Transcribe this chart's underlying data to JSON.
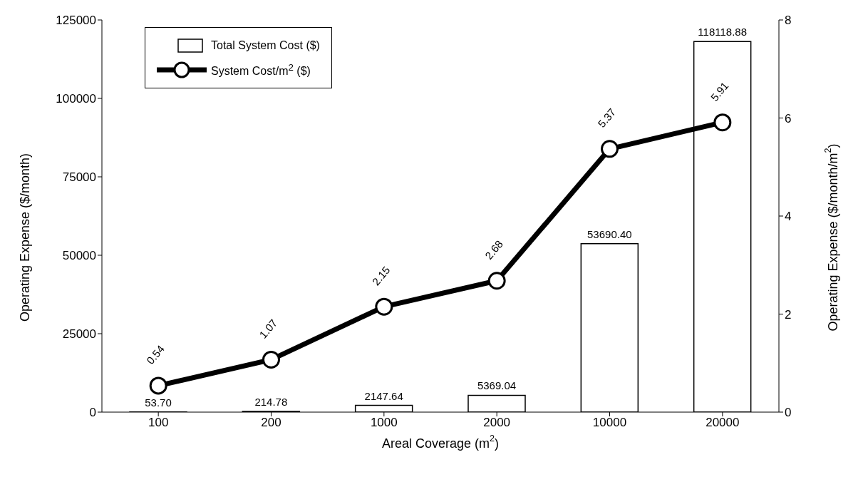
{
  "chart_data": {
    "type": "bar",
    "xlabel": "Areal Coverage (m$^{2}$)",
    "ylabel": "Operating Expense ($/month)",
    "y2label": "Operating Expense ($/month/m$^{2}$)",
    "categories": [
      "100",
      "200",
      "1000",
      "2000",
      "10000",
      "20000"
    ],
    "series": [
      {
        "name": "Total System Cost ($)",
        "color": "#ffffff",
        "values": [
          53.7,
          214.78,
          2147.64,
          5369.04,
          53690.4,
          118118.88
        ],
        "value_labels": [
          "53.70",
          "214.78",
          "2147.64",
          "5369.04",
          "53690.40",
          "118118.88"
        ]
      },
      {
        "name": "System Cost/m$^{2}$ ($)",
        "type": "line",
        "axis": "y2",
        "color": "#000000",
        "values": [
          0.54,
          1.07,
          2.15,
          2.68,
          5.37,
          5.91
        ],
        "value_labels": [
          "0.54",
          "1.07",
          "2.15",
          "2.68",
          "5.37",
          "5.91"
        ]
      }
    ],
    "ylim": [
      0,
      125000
    ],
    "yticks": [
      0,
      25000,
      50000,
      75000,
      100000,
      125000
    ],
    "y2lim": [
      0,
      8
    ],
    "y2ticks": [
      0,
      2,
      4,
      6,
      8
    ],
    "legend": "top left",
    "marker": "circle"
  }
}
